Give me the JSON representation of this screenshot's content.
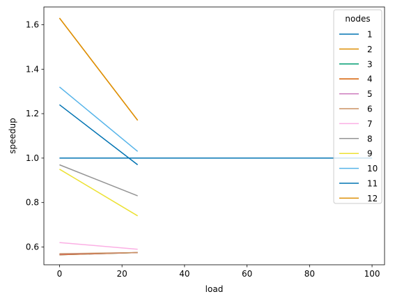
{
  "chart_data": {
    "type": "line",
    "xlabel": "load",
    "ylabel": "speedup",
    "xlim": [
      -5,
      104
    ],
    "ylim": [
      0.52,
      1.68
    ],
    "x_ticks": [
      0,
      20,
      40,
      60,
      80,
      100
    ],
    "y_ticks": [
      0.6,
      0.8,
      1.0,
      1.2,
      1.4,
      1.6
    ],
    "x_tick_labels": [
      "0",
      "20",
      "40",
      "60",
      "80",
      "100"
    ],
    "y_tick_labels": [
      "0.6",
      "0.8",
      "1.0",
      "1.2",
      "1.4",
      "1.6"
    ],
    "grid": false,
    "legend": {
      "title": "nodes",
      "placement": "top-right"
    },
    "series": [
      {
        "name": "1",
        "color": "#0173b2",
        "x": [
          0,
          100
        ],
        "y": [
          1.0,
          1.0
        ]
      },
      {
        "name": "2",
        "color": "#de8f05",
        "x": [
          0,
          25
        ],
        "y": [
          1.63,
          1.17
        ]
      },
      {
        "name": "3",
        "color": "#029e73",
        "x": [
          0,
          25
        ],
        "y": [
          0.565,
          0.575
        ]
      },
      {
        "name": "4",
        "color": "#d55e00",
        "x": [
          0,
          25
        ],
        "y": [
          0.565,
          0.575
        ]
      },
      {
        "name": "5",
        "color": "#cc78bc",
        "x": [
          0,
          25
        ],
        "y": [
          0.568,
          0.575
        ]
      },
      {
        "name": "6",
        "color": "#ca9161",
        "x": [
          0,
          25
        ],
        "y": [
          0.57,
          0.575
        ]
      },
      {
        "name": "7",
        "color": "#fbafe4",
        "x": [
          0,
          25
        ],
        "y": [
          0.62,
          0.59
        ]
      },
      {
        "name": "8",
        "color": "#949494",
        "x": [
          0,
          25
        ],
        "y": [
          0.97,
          0.83
        ]
      },
      {
        "name": "9",
        "color": "#ece133",
        "x": [
          0,
          25
        ],
        "y": [
          0.95,
          0.74
        ]
      },
      {
        "name": "10",
        "color": "#56b4e9",
        "x": [
          0,
          25
        ],
        "y": [
          1.32,
          1.03
        ]
      },
      {
        "name": "11",
        "color": "#0173b2",
        "x": [
          0,
          25
        ],
        "y": [
          1.24,
          0.97
        ]
      },
      {
        "name": "12",
        "color": "#de8f05",
        "x": [
          0,
          25
        ],
        "y": [
          1.63,
          1.17
        ]
      }
    ]
  }
}
